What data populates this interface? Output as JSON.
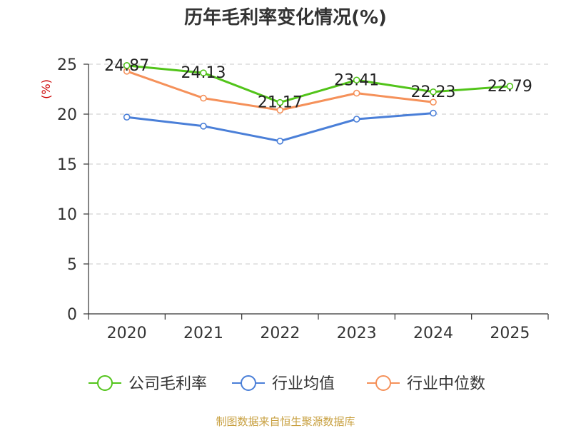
{
  "chart_data": {
    "type": "line",
    "title": "历年毛利率变化情况(%)",
    "ylabel": "(%)",
    "categories": [
      "2020",
      "2021",
      "2022",
      "2023",
      "2024",
      "2025"
    ],
    "ylim": [
      0,
      25
    ],
    "yticks": [
      0,
      5,
      10,
      15,
      20,
      25
    ],
    "grid": true,
    "legend_position": "bottom",
    "series": [
      {
        "name": "公司毛利率",
        "color": "#52c41a",
        "values": [
          24.87,
          24.13,
          21.17,
          23.41,
          22.23,
          22.79
        ],
        "labels": [
          "24.87",
          "24.13",
          "21.17",
          "23.41",
          "22.23",
          "22.79"
        ]
      },
      {
        "name": "行业均值",
        "color": "#4a7fd8",
        "values": [
          19.7,
          18.8,
          17.3,
          19.5,
          20.1,
          null
        ]
      },
      {
        "name": "行业中位数",
        "color": "#f5915a",
        "values": [
          24.3,
          21.6,
          20.4,
          22.1,
          21.2,
          null
        ]
      }
    ]
  },
  "footer": {
    "source": "制图数据来自恒生聚源数据库"
  }
}
